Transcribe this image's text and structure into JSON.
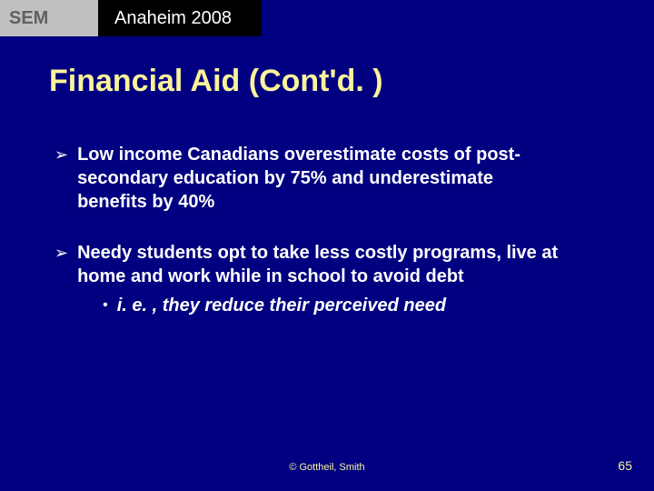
{
  "header": {
    "sem": "SEM",
    "conference": "Anaheim 2008"
  },
  "title": "Financial Aid (Cont'd. )",
  "bullets": [
    {
      "text": "Low income Canadians overestimate costs of post-secondary education by 75% and underestimate benefits by 40%",
      "sub": null
    },
    {
      "text": "Needy students opt to take less costly programs, live at home and work while in school to avoid debt",
      "sub": "i. e. , they reduce their perceived need"
    }
  ],
  "footer": {
    "copyright": "© Gottheil, Smith",
    "page": "65"
  },
  "colors": {
    "background": "#000080",
    "title": "#faf39a",
    "text": "#ffffff",
    "sem_bg": "#c0c0c0",
    "sem_fg": "#606060",
    "conf_bg": "#000000"
  }
}
